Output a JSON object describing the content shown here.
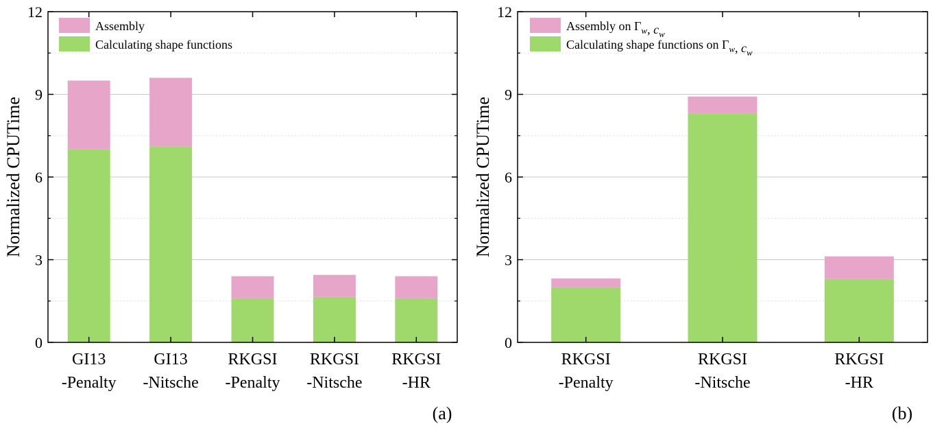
{
  "colors": {
    "assembly": "#e8a5ca",
    "shape_functions": "#9fd86b",
    "frame": "#000000",
    "major_grid": "#c8c8c8",
    "minor_grid": "#dddddd"
  },
  "chart_data": [
    {
      "type": "bar",
      "stacked": true,
      "panel_label": "(a)",
      "ylabel": "Normalized CPUTime",
      "ylim": [
        0,
        12
      ],
      "yticks": [
        0,
        3,
        6,
        9,
        12
      ],
      "grid": "horizontal, major and minor dashed",
      "legend_position": "top-left",
      "categories": [
        [
          "GI13",
          "-Penalty"
        ],
        [
          "GI13",
          "-Nitsche"
        ],
        [
          "RKGSI",
          "-Penalty"
        ],
        [
          "RKGSI",
          "-Nitsche"
        ],
        [
          "RKGSI",
          "-HR"
        ]
      ],
      "series": [
        {
          "name": "Calculating shape functions",
          "color_key": "shape_functions",
          "values": [
            7.0,
            7.1,
            1.6,
            1.65,
            1.6
          ]
        },
        {
          "name": "Assembly",
          "color_key": "assembly",
          "values": [
            2.5,
            2.5,
            0.8,
            0.8,
            0.8
          ]
        }
      ],
      "legend": [
        {
          "color_key": "assembly",
          "parts": [
            {
              "t": "Assembly"
            }
          ]
        },
        {
          "color_key": "shape_functions",
          "parts": [
            {
              "t": "Calculating shape functions"
            }
          ]
        }
      ]
    },
    {
      "type": "bar",
      "stacked": true,
      "panel_label": "(b)",
      "ylabel": "Normalized CPUTime",
      "ylim": [
        0,
        12
      ],
      "yticks": [
        0,
        3,
        6,
        9,
        12
      ],
      "grid": "horizontal, major and minor dashed",
      "legend_position": "top-left",
      "categories": [
        [
          "RKGSI",
          "-Penalty"
        ],
        [
          "RKGSI",
          "-Nitsche"
        ],
        [
          "RKGSI",
          "-HR"
        ]
      ],
      "series": [
        {
          "name": "Calculating shape functions on Γw, cw",
          "color_key": "shape_functions",
          "values": [
            2.0,
            8.3,
            2.3
          ]
        },
        {
          "name": "Assembly on Γw, cw",
          "color_key": "assembly",
          "values": [
            0.32,
            0.62,
            0.82
          ]
        }
      ],
      "legend": [
        {
          "color_key": "assembly",
          "parts": [
            {
              "t": "Assembly on "
            },
            {
              "t": "Γ"
            },
            {
              "t": "w",
              "sub": true,
              "italic": true
            },
            {
              "t": ", "
            },
            {
              "t": "c",
              "italic": true
            },
            {
              "t": "w",
              "sub": true,
              "italic": true
            }
          ]
        },
        {
          "color_key": "shape_functions",
          "parts": [
            {
              "t": "Calculating shape functions on "
            },
            {
              "t": "Γ"
            },
            {
              "t": "w",
              "sub": true,
              "italic": true
            },
            {
              "t": ", "
            },
            {
              "t": "c",
              "italic": true
            },
            {
              "t": "w",
              "sub": true,
              "italic": true
            }
          ]
        }
      ]
    }
  ]
}
